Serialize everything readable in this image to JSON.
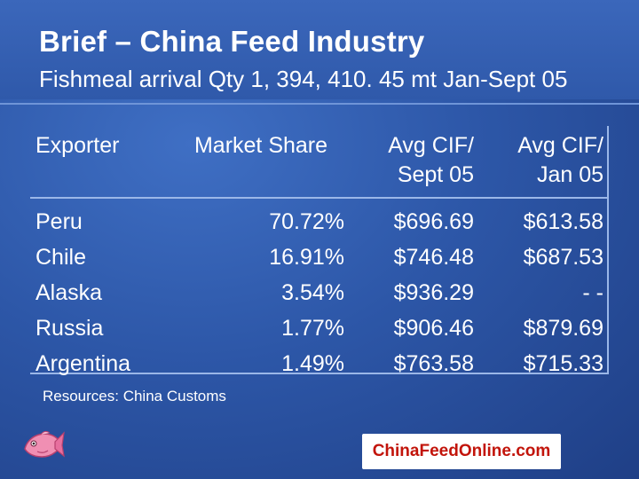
{
  "slide": {
    "title": "Brief – China Feed Industry",
    "subtitle": "Fishmeal arrival Qty 1, 394, 410. 45 mt Jan-Sept 05"
  },
  "table": {
    "headers": {
      "exporter": "Exporter",
      "market_share": "Market Share",
      "avg_cif_sept_line1": "Avg CIF/",
      "avg_cif_sept_line2": "Sept 05",
      "avg_cif_jan_line1": "Avg CIF/",
      "avg_cif_jan_line2": "Jan 05"
    },
    "rows": [
      {
        "exporter": "Peru",
        "market_share": "70.72%",
        "avg_cif_sept": "$696.69",
        "avg_cif_jan": "$613.58"
      },
      {
        "exporter": "Chile",
        "market_share": "16.91%",
        "avg_cif_sept": "$746.48",
        "avg_cif_jan": "$687.53"
      },
      {
        "exporter": "Alaska",
        "market_share": "3.54%",
        "avg_cif_sept": "$936.29",
        "avg_cif_jan": "- -"
      },
      {
        "exporter": "Russia",
        "market_share": "1.77%",
        "avg_cif_sept": "$906.46",
        "avg_cif_jan": "$879.69"
      },
      {
        "exporter": "Argentina",
        "market_share": "1.49%",
        "avg_cif_sept": "$763.58",
        "avg_cif_jan": "$715.33"
      }
    ]
  },
  "source": "Resources: China Customs",
  "footer": {
    "site": "ChinaFeedOnline.com",
    "logo_icon": "pink-fish-icon"
  },
  "colors": {
    "background": "#2d57a8",
    "site_text": "#c2140a"
  }
}
